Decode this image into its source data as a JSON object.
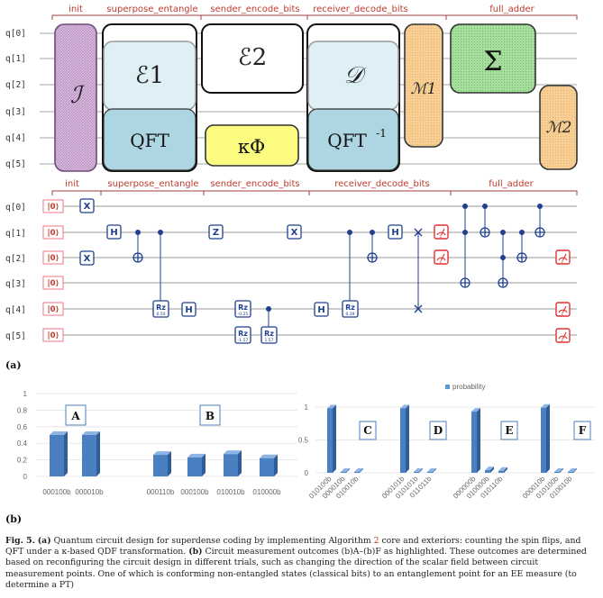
{
  "top_circuit": {
    "sections": [
      "init",
      "superpose_entangle",
      "sender_encode_bits",
      "receiver_decode_bits",
      "full_adder"
    ],
    "qubits": [
      "q[0]",
      "q[1]",
      "q[2]",
      "q[3]",
      "q[4]",
      "q[5]"
    ],
    "blocks": {
      "init": "ℐ",
      "e1": "ℰ1",
      "qft": "QFT",
      "e2": "ℰ2",
      "kphi": "κΦ",
      "d": "𝒟",
      "qft_inv": "QFT",
      "qft_inv_sup": "-1",
      "m1": "ℳ1",
      "sigma": "Σ",
      "m2": "ℳ2"
    }
  },
  "bottom_circuit": {
    "sections": [
      "init",
      "superpose_entangle",
      "sender_encode_bits",
      "receiver_decode_bits",
      "full_adder"
    ],
    "qubits": [
      "q[0]",
      "q[1]",
      "q[2]",
      "q[3]",
      "q[4]",
      "q[5]"
    ],
    "init_ket": "|0⟩",
    "gates": {
      "x": "X",
      "h": "H",
      "z": "Z",
      "rz": "Rz"
    },
    "rz_params": [
      "0.50",
      "-0.25",
      "-1.57",
      "1.57",
      "0.39"
    ]
  },
  "label_a": "(a)",
  "label_b": "(b)",
  "chart_data": [
    {
      "type": "bar",
      "panels": [
        {
          "label": "A",
          "categories": [
            "000100b",
            "000010b"
          ],
          "values": [
            0.5,
            0.5
          ]
        },
        {
          "label": "B",
          "categories": [
            "000110b",
            "000100b",
            "010010b",
            "010000b"
          ],
          "values": [
            0.26,
            0.23,
            0.27,
            0.22
          ]
        }
      ],
      "ylim": [
        0,
        1
      ],
      "yticks": [
        "1",
        "0.8",
        "0.6",
        "0.4",
        "0.2",
        "0"
      ]
    },
    {
      "type": "bar",
      "legend": "probability",
      "panels": [
        {
          "label": "C",
          "categories": [
            "010100b",
            "000010b",
            "010010b"
          ],
          "values": [
            0.98,
            0.01,
            0.01
          ]
        },
        {
          "label": "D",
          "categories": [
            "000101b",
            "010101b",
            "011011b"
          ],
          "values": [
            0.98,
            0.01,
            0.01
          ]
        },
        {
          "label": "E",
          "categories": [
            "000000b",
            "010000b",
            "010110b"
          ],
          "values": [
            0.93,
            0.04,
            0.03
          ]
        },
        {
          "label": "F",
          "categories": [
            "000010b",
            "010100b",
            "010010b"
          ],
          "values": [
            0.99,
            0.005,
            0.005
          ]
        }
      ],
      "ylim": [
        0,
        1
      ],
      "yticks": [
        "1",
        "0.5",
        "0"
      ]
    }
  ],
  "caption": {
    "fig": "Fig. 5.",
    "a": "(a)",
    "t1": " Quantum circuit design for superdense coding by implementing Algorithm ",
    "alg": "2",
    "t2": " core and exteriors: counting the spin flips, and QFT under a κ-based QDF transformation. ",
    "b": "(b)",
    "t3": " Circuit measurement outcomes (b)A–(b)F as highlighted. These outcomes are determined based on reconfiguring the circuit design in different trials, such as changing the direction of the scalar field between circuit measurement points. One of which is conforming non-entangled states (classical bits) to an entanglement point for an EE measure (to determine a PT)"
  }
}
